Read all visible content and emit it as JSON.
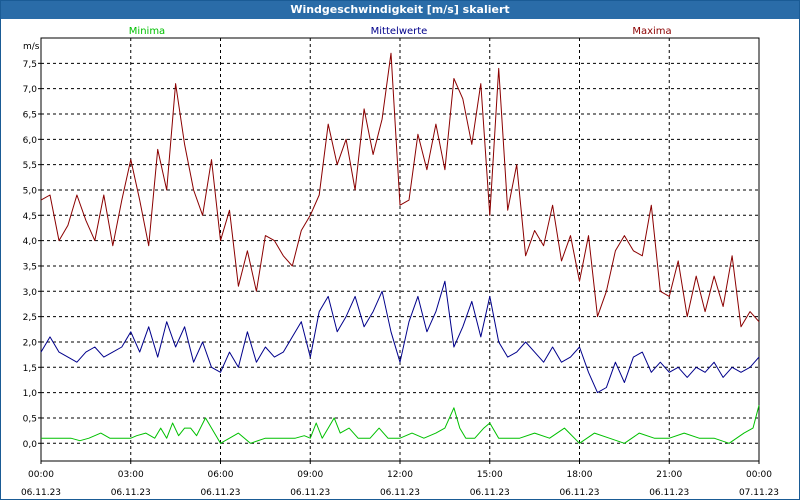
{
  "window": {
    "title": "Windgeschwindigkeit [m/s] skaliert"
  },
  "colors": {
    "min": "#00c000",
    "mean": "#00008b",
    "max": "#8b0000",
    "grid": "#000000"
  },
  "chart_data": {
    "type": "line",
    "title": "Windgeschwindigkeit [m/s] skaliert",
    "ylabel": "m/s",
    "xlabel": "",
    "ylim": [
      -0.35,
      8.0
    ],
    "xlim": [
      0,
      24
    ],
    "grid": true,
    "yticks": [
      0.0,
      0.5,
      1.0,
      1.5,
      2.0,
      2.5,
      3.0,
      3.5,
      4.0,
      4.5,
      5.0,
      5.5,
      6.0,
      6.5,
      7.0,
      7.5
    ],
    "ytick_labels": [
      "0,0",
      "0,5",
      "1,0",
      "1,5",
      "2,0",
      "2,5",
      "3,0",
      "3,5",
      "4,0",
      "4,5",
      "5,0",
      "5,5",
      "6,0",
      "6,5",
      "7,0",
      "7,5"
    ],
    "xticks": [
      0,
      3,
      6,
      9,
      12,
      15,
      18,
      21,
      24
    ],
    "xtick_times": [
      "00:00",
      "03:00",
      "06:00",
      "09:00",
      "12:00",
      "15:00",
      "18:00",
      "21:00",
      "00:00"
    ],
    "xtick_dates": [
      "06.11.23",
      "06.11.23",
      "06.11.23",
      "06.11.23",
      "06.11.23",
      "06.11.23",
      "06.11.23",
      "06.11.23",
      "07.11.23"
    ],
    "legend": [
      "Minima",
      "Mittelwerte",
      "Maxima"
    ],
    "series": [
      {
        "name": "Minima",
        "x": [
          0,
          0.5,
          1,
          1.3,
          1.6,
          2,
          2.3,
          2.6,
          3,
          3.2,
          3.5,
          3.8,
          4.0,
          4.2,
          4.4,
          4.6,
          4.8,
          5.0,
          5.2,
          5.5,
          5.8,
          6.0,
          6.3,
          6.6,
          7,
          7.5,
          8,
          8.5,
          8.8,
          9.0,
          9.2,
          9.4,
          9.6,
          9.8,
          10.0,
          10.3,
          10.6,
          11,
          11.3,
          11.6,
          12,
          12.4,
          12.8,
          13.2,
          13.5,
          13.8,
          14.0,
          14.2,
          14.5,
          14.8,
          15.0,
          15.3,
          15.6,
          16,
          16.5,
          17,
          17.5,
          18,
          18.5,
          19,
          19.5,
          20,
          20.5,
          21,
          21.5,
          22,
          22.5,
          23,
          23.5,
          23.8,
          24
        ],
        "values": [
          0.1,
          0.1,
          0.1,
          0.05,
          0.1,
          0.2,
          0.1,
          0.1,
          0.1,
          0.15,
          0.2,
          0.1,
          0.3,
          0.1,
          0.4,
          0.15,
          0.3,
          0.3,
          0.15,
          0.5,
          0.2,
          0.0,
          0.1,
          0.2,
          0.0,
          0.1,
          0.1,
          0.1,
          0.15,
          0.1,
          0.4,
          0.1,
          0.3,
          0.5,
          0.2,
          0.3,
          0.1,
          0.1,
          0.3,
          0.1,
          0.1,
          0.2,
          0.1,
          0.2,
          0.3,
          0.7,
          0.3,
          0.1,
          0.1,
          0.3,
          0.4,
          0.1,
          0.1,
          0.1,
          0.2,
          0.1,
          0.3,
          0.0,
          0.2,
          0.1,
          0.0,
          0.2,
          0.1,
          0.1,
          0.2,
          0.1,
          0.1,
          0.0,
          0.2,
          0.3,
          0.75
        ]
      },
      {
        "name": "Mittelwerte",
        "x": [
          0,
          0.3,
          0.6,
          0.9,
          1.2,
          1.5,
          1.8,
          2.1,
          2.4,
          2.7,
          3.0,
          3.3,
          3.6,
          3.9,
          4.2,
          4.5,
          4.8,
          5.1,
          5.4,
          5.7,
          6.0,
          6.3,
          6.6,
          6.9,
          7.2,
          7.5,
          7.8,
          8.1,
          8.4,
          8.7,
          9.0,
          9.3,
          9.6,
          9.9,
          10.2,
          10.5,
          10.8,
          11.1,
          11.4,
          11.7,
          12.0,
          12.3,
          12.6,
          12.9,
          13.2,
          13.5,
          13.8,
          14.1,
          14.4,
          14.7,
          15.0,
          15.3,
          15.6,
          15.9,
          16.2,
          16.5,
          16.8,
          17.1,
          17.4,
          17.7,
          18.0,
          18.3,
          18.6,
          18.9,
          19.2,
          19.5,
          19.8,
          20.1,
          20.4,
          20.7,
          21.0,
          21.3,
          21.6,
          21.9,
          22.2,
          22.5,
          22.8,
          23.1,
          23.4,
          23.7,
          24.0
        ],
        "values": [
          1.8,
          2.1,
          1.8,
          1.7,
          1.6,
          1.8,
          1.9,
          1.7,
          1.8,
          1.9,
          2.2,
          1.8,
          2.3,
          1.7,
          2.4,
          1.9,
          2.3,
          1.6,
          2.0,
          1.5,
          1.4,
          1.8,
          1.5,
          2.2,
          1.6,
          1.9,
          1.7,
          1.8,
          2.1,
          2.4,
          1.7,
          2.6,
          2.9,
          2.2,
          2.5,
          2.9,
          2.3,
          2.6,
          3.0,
          2.2,
          1.6,
          2.4,
          2.9,
          2.2,
          2.6,
          3.2,
          1.9,
          2.3,
          2.8,
          2.1,
          2.9,
          2.0,
          1.7,
          1.8,
          2.0,
          1.8,
          1.6,
          1.9,
          1.6,
          1.7,
          1.9,
          1.4,
          1.0,
          1.1,
          1.6,
          1.2,
          1.7,
          1.8,
          1.4,
          1.6,
          1.4,
          1.5,
          1.3,
          1.5,
          1.4,
          1.6,
          1.3,
          1.5,
          1.4,
          1.5,
          1.7
        ]
      },
      {
        "name": "Maxima",
        "x": [
          0,
          0.3,
          0.6,
          0.9,
          1.2,
          1.5,
          1.8,
          2.1,
          2.4,
          2.7,
          3.0,
          3.3,
          3.6,
          3.9,
          4.2,
          4.5,
          4.8,
          5.1,
          5.4,
          5.7,
          6.0,
          6.3,
          6.6,
          6.9,
          7.2,
          7.5,
          7.8,
          8.1,
          8.4,
          8.7,
          9.0,
          9.3,
          9.6,
          9.9,
          10.2,
          10.5,
          10.8,
          11.1,
          11.4,
          11.7,
          12.0,
          12.3,
          12.6,
          12.9,
          13.2,
          13.5,
          13.8,
          14.1,
          14.4,
          14.7,
          15.0,
          15.3,
          15.6,
          15.9,
          16.2,
          16.5,
          16.8,
          17.1,
          17.4,
          17.7,
          18.0,
          18.3,
          18.6,
          18.9,
          19.2,
          19.5,
          19.8,
          20.1,
          20.4,
          20.7,
          21.0,
          21.3,
          21.6,
          21.9,
          22.2,
          22.5,
          22.8,
          23.1,
          23.4,
          23.7,
          24.0
        ],
        "values": [
          4.8,
          4.9,
          4.0,
          4.3,
          4.9,
          4.4,
          4.0,
          4.9,
          3.9,
          4.8,
          5.6,
          4.8,
          3.9,
          5.8,
          5.0,
          7.1,
          5.9,
          5.0,
          4.5,
          5.6,
          4.0,
          4.6,
          3.1,
          3.8,
          3.0,
          4.1,
          4.0,
          3.7,
          3.5,
          4.2,
          4.5,
          4.9,
          6.3,
          5.5,
          6.0,
          5.0,
          6.6,
          5.7,
          6.4,
          7.7,
          4.7,
          4.8,
          6.1,
          5.4,
          6.3,
          5.4,
          7.2,
          6.8,
          5.9,
          7.1,
          4.5,
          7.4,
          4.6,
          5.5,
          3.7,
          4.2,
          3.9,
          4.7,
          3.6,
          4.1,
          3.2,
          4.1,
          2.5,
          3.0,
          3.8,
          4.1,
          3.8,
          3.7,
          4.7,
          3.0,
          2.9,
          3.6,
          2.5,
          3.3,
          2.6,
          3.3,
          2.7,
          3.7,
          2.3,
          2.6,
          2.4
        ]
      }
    ]
  }
}
